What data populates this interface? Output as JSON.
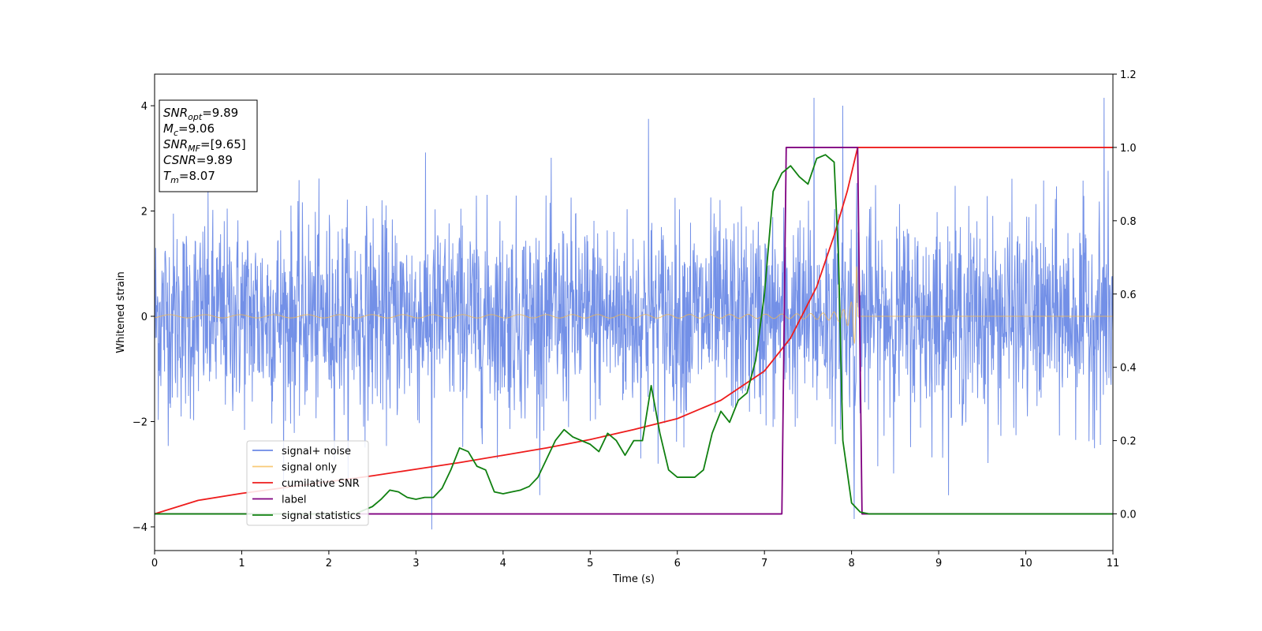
{
  "chart_data": {
    "type": "line",
    "xlabel": "Time (s)",
    "ylabel": "Whitened strain",
    "xlim": [
      0,
      11
    ],
    "ylim_left": [
      -4.45,
      4.6
    ],
    "ylim_right": [
      -0.1,
      1.2
    ],
    "x_ticks": [
      0,
      1,
      2,
      3,
      4,
      5,
      6,
      7,
      8,
      9,
      10,
      11
    ],
    "y_ticks_left": [
      -4,
      -2,
      0,
      2,
      4
    ],
    "y_ticks_right": [
      "0.0",
      "0.2",
      "0.4",
      "0.6",
      "0.8",
      "1.0",
      "1.2"
    ],
    "grid": false,
    "legend_position": "lower-left",
    "colors": {
      "signal_noise": "#6b8ae6",
      "signal_only": "#f5b84a",
      "cumulative_snr": "#ee1c1c",
      "label": "#800080",
      "signal_statistics": "#108010"
    },
    "series": [
      {
        "key": "signal_noise",
        "name": "signal+ noise",
        "axis": "left",
        "description_range": [
          -4.05,
          4.2
        ],
        "peaks": [
          [
            3.18,
            -4.05
          ],
          [
            7.57,
            4.15
          ],
          [
            7.9,
            4.0
          ],
          [
            10.9,
            4.15
          ],
          [
            8.03,
            -3.85
          ],
          [
            5.67,
            3.75
          ]
        ]
      },
      {
        "key": "signal_only",
        "name": "signal only",
        "axis": "left",
        "merger_time": 8.07,
        "peak_amplitude": 0.95,
        "initial_amplitude": 0.03
      },
      {
        "key": "cumulative_snr",
        "name": "cumilative SNR",
        "axis": "right",
        "x": [
          0,
          0.5,
          1,
          1.5,
          2,
          2.5,
          3,
          3.5,
          4,
          4.5,
          5,
          5.5,
          6,
          6.5,
          7,
          7.3,
          7.6,
          7.8,
          7.95,
          8.03,
          8.07,
          8.1,
          11
        ],
        "y": [
          0.0,
          0.037,
          0.056,
          0.072,
          0.088,
          0.104,
          0.122,
          0.14,
          0.16,
          0.18,
          0.203,
          0.23,
          0.26,
          0.31,
          0.39,
          0.48,
          0.62,
          0.76,
          0.88,
          0.96,
          1.0,
          1.0,
          1.0
        ]
      },
      {
        "key": "label",
        "name": "label",
        "axis": "right",
        "x": [
          0,
          7.2,
          7.25,
          8.07,
          8.12,
          11
        ],
        "y": [
          0,
          0,
          1,
          1,
          0,
          0
        ]
      },
      {
        "key": "signal_statistics",
        "name": "signal statistics",
        "axis": "right",
        "x": [
          0,
          2.3,
          2.5,
          2.6,
          2.7,
          2.8,
          2.9,
          3.0,
          3.1,
          3.2,
          3.3,
          3.4,
          3.5,
          3.6,
          3.7,
          3.8,
          3.9,
          4.0,
          4.1,
          4.2,
          4.3,
          4.4,
          4.5,
          4.6,
          4.7,
          4.8,
          4.9,
          5.0,
          5.1,
          5.2,
          5.3,
          5.4,
          5.5,
          5.6,
          5.7,
          5.8,
          5.9,
          6.0,
          6.1,
          6.2,
          6.3,
          6.4,
          6.5,
          6.6,
          6.7,
          6.8,
          6.9,
          7.0,
          7.1,
          7.2,
          7.3,
          7.4,
          7.5,
          7.6,
          7.7,
          7.8,
          7.85,
          7.9,
          8.0,
          8.1,
          8.2,
          8.3,
          11
        ],
        "y": [
          0.0,
          0.0,
          0.02,
          0.04,
          0.065,
          0.06,
          0.045,
          0.04,
          0.045,
          0.045,
          0.07,
          0.12,
          0.18,
          0.17,
          0.13,
          0.12,
          0.06,
          0.055,
          0.06,
          0.065,
          0.075,
          0.1,
          0.15,
          0.2,
          0.23,
          0.21,
          0.2,
          0.19,
          0.17,
          0.22,
          0.2,
          0.16,
          0.2,
          0.2,
          0.35,
          0.22,
          0.12,
          0.1,
          0.1,
          0.1,
          0.12,
          0.22,
          0.28,
          0.25,
          0.31,
          0.33,
          0.42,
          0.6,
          0.88,
          0.93,
          0.95,
          0.92,
          0.9,
          0.97,
          0.98,
          0.96,
          0.7,
          0.2,
          0.03,
          0.005,
          0.0,
          0.0,
          0.0
        ]
      }
    ],
    "annotation": {
      "lines": [
        {
          "var": "SNR",
          "sub": "opt",
          "val": "=9.89"
        },
        {
          "var": "M",
          "sub": "c",
          "val": "=9.06"
        },
        {
          "var": "SNR",
          "sub": "MF",
          "val": "=[9.65]"
        },
        {
          "var": "CSNR",
          "sub": "",
          "val": "=9.89"
        },
        {
          "var": "T",
          "sub": "m",
          "val": "=8.07"
        }
      ]
    }
  }
}
